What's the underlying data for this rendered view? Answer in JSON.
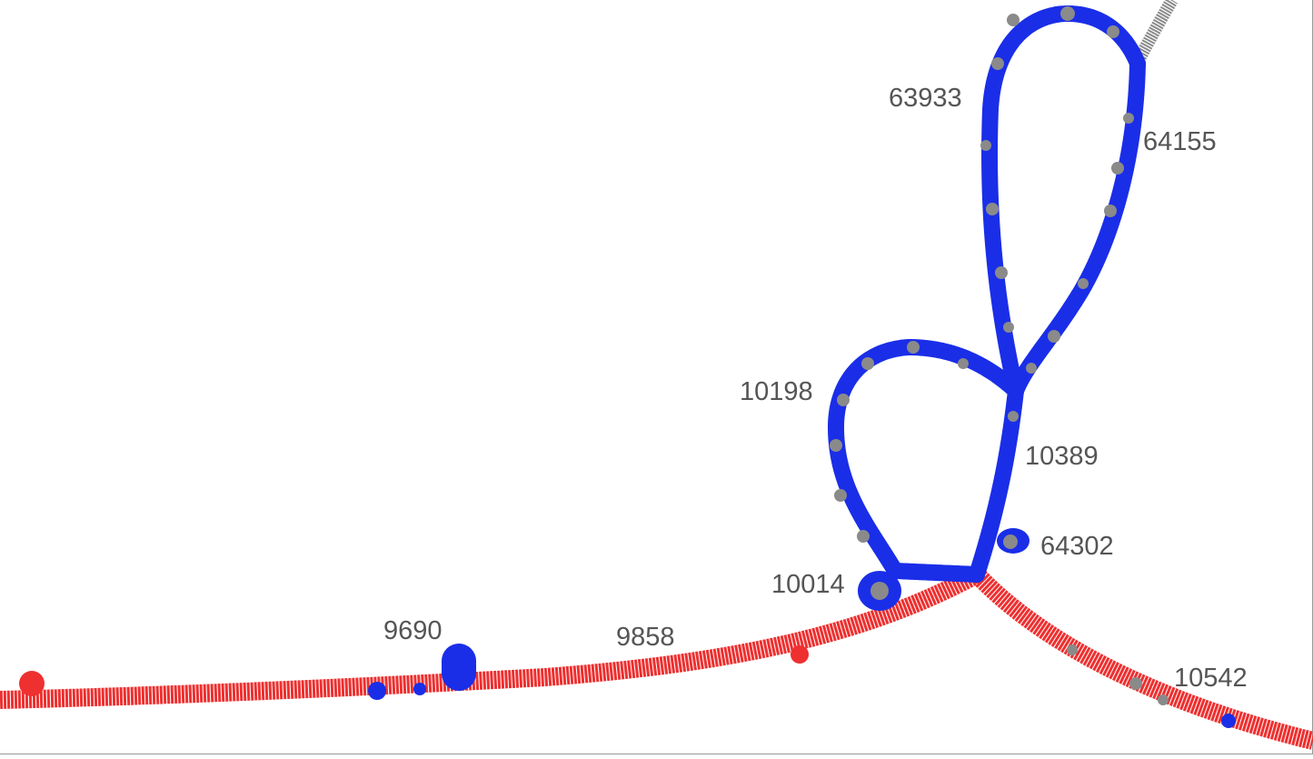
{
  "graph": {
    "colors": {
      "primary_path": "#ee3030",
      "branch_path": "#1a2ee8",
      "unmatched_path": "#8a8a8a",
      "label": "#555555"
    },
    "node_labels": [
      {
        "id": "n63933",
        "text": "63933"
      },
      {
        "id": "n64155",
        "text": "64155"
      },
      {
        "id": "n10198",
        "text": "10198"
      },
      {
        "id": "n10389",
        "text": "10389"
      },
      {
        "id": "n64302",
        "text": "64302"
      },
      {
        "id": "n10014",
        "text": "10014"
      },
      {
        "id": "n9690",
        "text": "9690"
      },
      {
        "id": "n9858",
        "text": "9858"
      },
      {
        "id": "n10542",
        "text": "10542"
      }
    ]
  }
}
